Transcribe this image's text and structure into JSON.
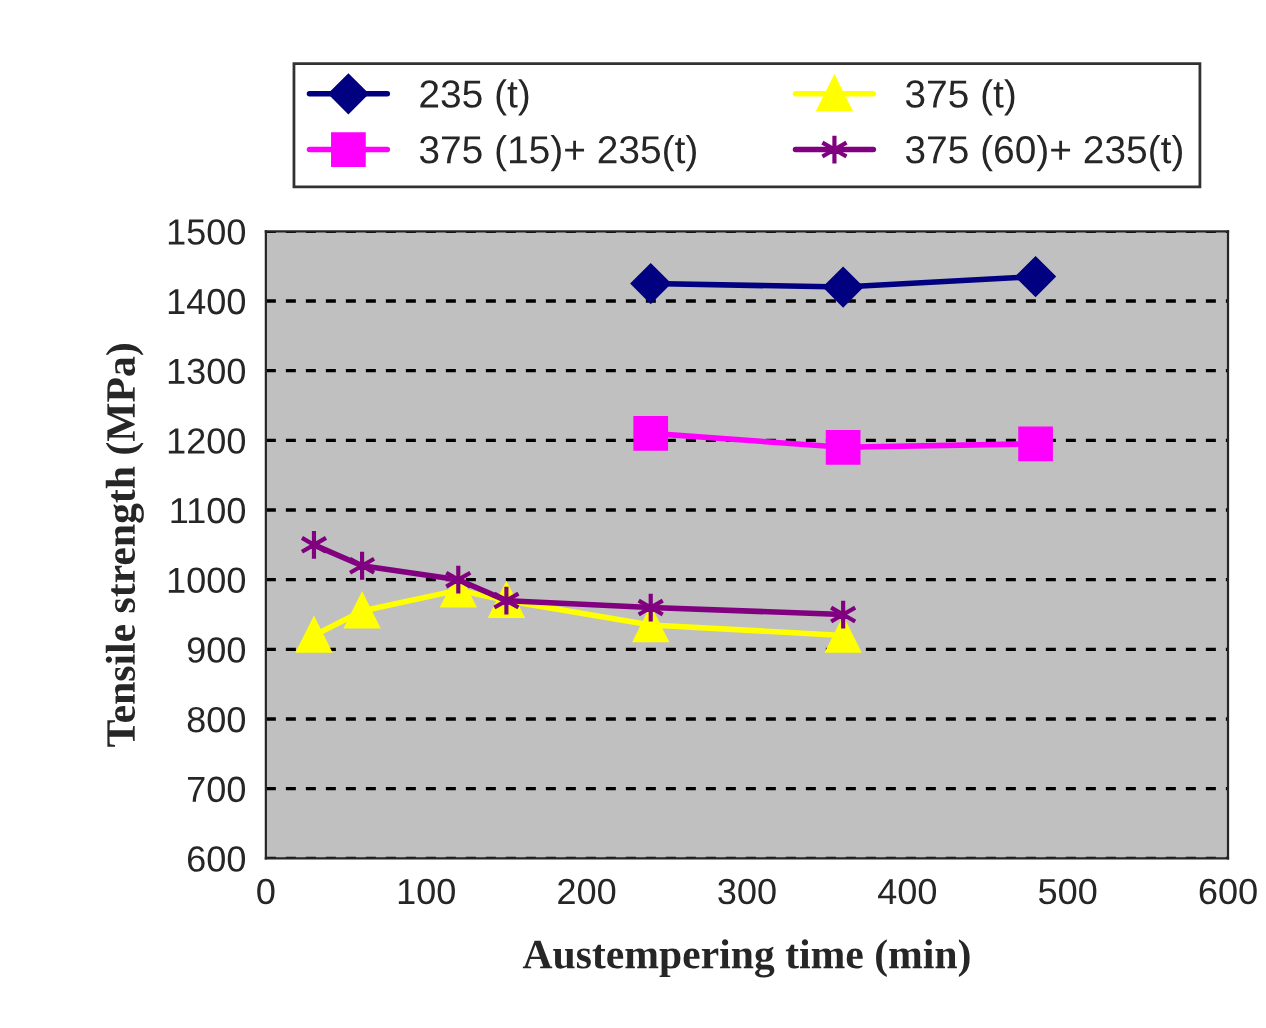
{
  "chart_data": {
    "type": "line",
    "xlabel": "Austempering time (min)",
    "ylabel": "Tensile strength (MPa)",
    "xlim": [
      0,
      600
    ],
    "xticks": [
      0,
      100,
      200,
      300,
      400,
      500,
      600
    ],
    "ylim": [
      600,
      1500
    ],
    "yticks": [
      600,
      700,
      800,
      900,
      1000,
      1100,
      1200,
      1300,
      1400,
      1500
    ],
    "grid": "y",
    "legend": "top",
    "series": [
      {
        "name": "235 (t)",
        "color": "#000080",
        "marker": "diamond",
        "x": [
          240,
          360,
          480
        ],
        "values": [
          1425,
          1420,
          1435
        ]
      },
      {
        "name": "375 (t)",
        "color": "#ffff00",
        "marker": "triangle",
        "x": [
          30,
          60,
          120,
          150,
          240,
          360
        ],
        "values": [
          920,
          955,
          985,
          970,
          935,
          920
        ]
      },
      {
        "name": "375 (15)+ 235(t)",
        "color": "#ff00ff",
        "marker": "square",
        "x": [
          240,
          360,
          480
        ],
        "values": [
          1210,
          1190,
          1195
        ]
      },
      {
        "name": "375 (60)+ 235(t)",
        "color": "#800080",
        "marker": "cross",
        "x": [
          30,
          60,
          120,
          150,
          240,
          360
        ],
        "values": [
          1050,
          1020,
          1000,
          970,
          960,
          950
        ]
      }
    ]
  }
}
